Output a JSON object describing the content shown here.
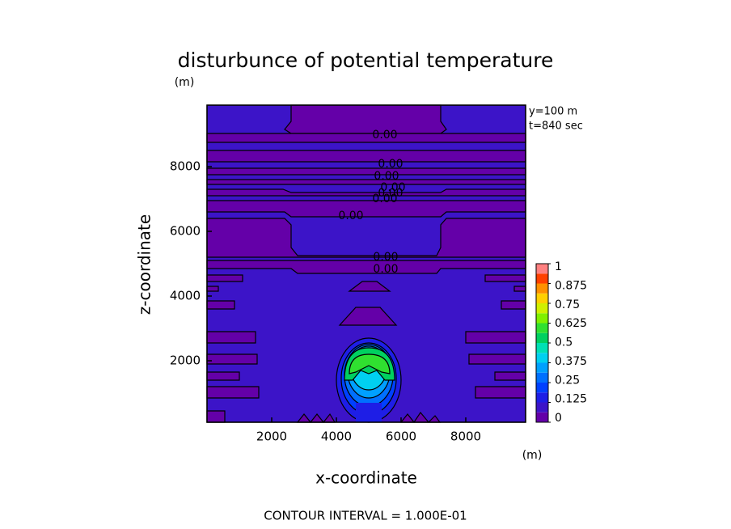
{
  "chart_data": {
    "type": "contour",
    "title": "disturbunce of potential temperature",
    "x_label": "x-coordinate",
    "y_label": "z-coordinate",
    "x_unit": "(m)",
    "y_unit": "(m)",
    "annotations": [
      "y=100 m",
      "t=840 sec"
    ],
    "footer": "CONTOUR INTERVAL = 1.000E-01",
    "xlim": [
      0,
      9850
    ],
    "ylim": [
      100,
      9900
    ],
    "xticks": [
      2000,
      4000,
      6000,
      8000
    ],
    "yticks": [
      2000,
      4000,
      6000,
      8000
    ],
    "colorbar": {
      "levels": [
        0,
        0.0625,
        0.125,
        0.1875,
        0.25,
        0.3125,
        0.375,
        0.4375,
        0.5,
        0.5625,
        0.625,
        0.6875,
        0.75,
        0.8125,
        0.875,
        0.9375,
        1
      ],
      "colors": [
        "#6400a8",
        "#3c14c8",
        "#1e1ee6",
        "#0040ff",
        "#0070ff",
        "#00a0ff",
        "#00d0f0",
        "#00e0b4",
        "#00d060",
        "#30e030",
        "#80f000",
        "#d0f000",
        "#ffd000",
        "#ff9000",
        "#ff4000",
        "#ff8080"
      ],
      "ticks": [
        0,
        0.125,
        0.25,
        0.375,
        0.5,
        0.625,
        0.75,
        0.875,
        1
      ]
    },
    "contour_labels": [
      "0.00",
      "0.00",
      "0.00",
      "0.00",
      "0.00",
      "0.00",
      "0.00",
      "0.00",
      "0.00"
    ]
  }
}
